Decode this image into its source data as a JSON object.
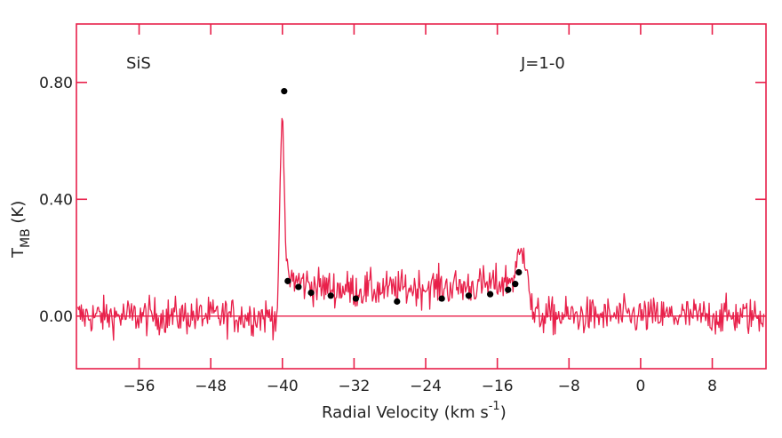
{
  "chart_data": {
    "type": "line",
    "xlabel": "Radial Velocity (km s",
    "xlabel_sup": "-1",
    "xlabel_close": ")",
    "ylabel_main": "T",
    "ylabel_sub": "MB",
    "ylabel_unit": " (K)",
    "annotations": [
      {
        "text": "SiS",
        "pos": "top-left"
      },
      {
        "text": "J=1-0",
        "pos": "top-right"
      }
    ],
    "xlim": [
      -63,
      14
    ],
    "ylim": [
      -0.18,
      1.0
    ],
    "x_ticks": [
      -56,
      -48,
      -40,
      -32,
      -24,
      -16,
      -8,
      0,
      8
    ],
    "y_ticks": [
      0.0,
      0.4,
      0.8
    ],
    "y_tick_labels": [
      "0.00",
      "0.40",
      "0.80"
    ],
    "colors": {
      "spectrum": "#e8204a",
      "frame": "#e8204a",
      "dots": "#000000"
    },
    "series": [
      {
        "style": "noisy-line",
        "profile": [
          [
            -63.0,
            0.0
          ],
          [
            -40.6,
            0.0
          ],
          [
            -40.4,
            0.2
          ],
          [
            -40.2,
            0.55
          ],
          [
            -40.0,
            0.72
          ],
          [
            -39.8,
            0.45
          ],
          [
            -39.6,
            0.2
          ],
          [
            -39.3,
            0.14
          ],
          [
            -38.5,
            0.12
          ],
          [
            -36,
            0.1
          ],
          [
            -32,
            0.09
          ],
          [
            -28,
            0.09
          ],
          [
            -24,
            0.1
          ],
          [
            -20,
            0.1
          ],
          [
            -16,
            0.11
          ],
          [
            -14.2,
            0.13
          ],
          [
            -13.6,
            0.2
          ],
          [
            -13.0,
            0.22
          ],
          [
            -12.6,
            0.18
          ],
          [
            -12.3,
            0.05
          ],
          [
            -12.0,
            0.0
          ],
          [
            14.0,
            0.0
          ]
        ],
        "noise_rms": 0.045
      },
      {
        "style": "points",
        "points": [
          [
            -39.8,
            0.77
          ],
          [
            -39.4,
            0.12
          ],
          [
            -38.2,
            0.1
          ],
          [
            -36.8,
            0.08
          ],
          [
            -34.6,
            0.07
          ],
          [
            -31.8,
            0.06
          ],
          [
            -27.2,
            0.05
          ],
          [
            -22.2,
            0.06
          ],
          [
            -19.2,
            0.07
          ],
          [
            -16.8,
            0.075
          ],
          [
            -14.8,
            0.09
          ],
          [
            -14.0,
            0.11
          ],
          [
            -13.6,
            0.15
          ]
        ]
      }
    ]
  }
}
